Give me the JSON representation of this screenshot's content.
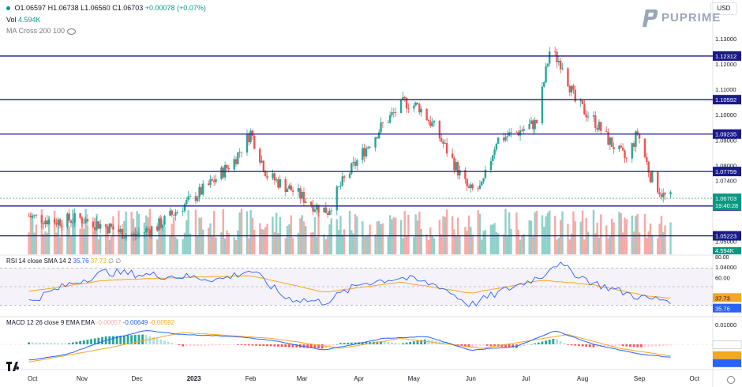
{
  "header": {
    "ohlc": {
      "open": "O1.06597",
      "high": "H1.06738",
      "low": "L1.06560",
      "close": "C1.06703",
      "change": "+0.00078 (+0.07%)"
    },
    "volume": {
      "label": "Vol",
      "value": "4.594K"
    },
    "ma_indicator": "MA Cross 200 100",
    "currency": "USD",
    "brand": "PUPRIME"
  },
  "rsi": {
    "label": "RSI 14 close SMA 14 2",
    "rsi_value": "35.76",
    "sma_value": "37.73",
    "extra": "∅ ∅"
  },
  "macd": {
    "label": "MACD 12 26 close 9 EMA EMA",
    "hist_value": "-0.00057",
    "macd_value": "-0.00649",
    "signal_value": "-0.00592"
  },
  "colors": {
    "up": "#26a69a",
    "down": "#ef5350",
    "level_line": "#1a1a8c",
    "rsi_line": "#2962ff",
    "rsi_sma": "#f5a623",
    "vol_up": "#8fd1c9",
    "vol_down": "#f7a9a7",
    "price_tag": "#089981"
  },
  "chart_data": [
    {
      "type": "candlestick",
      "title": "",
      "ylim": [
        1.044,
        1.134
      ],
      "y_ticks": [
        "1.13000",
        "1.12000",
        "1.11000",
        "1.10000",
        "1.09000",
        "1.08000",
        "1.07400",
        "1.05000",
        "1.04000"
      ],
      "x_labels": [
        "Oct",
        "Nov",
        "Dec",
        "2023",
        "Feb",
        "Mar",
        "Apr",
        "May",
        "Jun",
        "Jul",
        "Aug",
        "Sep",
        "Oct"
      ],
      "horizontal_levels": [
        "1.12312",
        "1.10592",
        "1.09235",
        "1.07759",
        "1.06399",
        "1.05223"
      ],
      "last_price": "1.06703",
      "countdown": "19:40:28",
      "volume_last": "4.594K",
      "volume_axis_label": "80.00",
      "close_path": [
        [
          "2022-10-03",
          1.06
        ],
        [
          "2022-10-17",
          1.058
        ],
        [
          "2022-10-31",
          1.059
        ],
        [
          "2022-11-14",
          1.056
        ],
        [
          "2022-11-28",
          1.052
        ],
        [
          "2022-12-12",
          1.056
        ],
        [
          "2022-12-26",
          1.064
        ],
        [
          "2023-01-09",
          1.072
        ],
        [
          "2023-01-23",
          1.082
        ],
        [
          "2023-02-01",
          1.093
        ],
        [
          "2023-02-10",
          1.076
        ],
        [
          "2023-02-24",
          1.07
        ],
        [
          "2023-03-08",
          1.064
        ],
        [
          "2023-03-15",
          1.062
        ],
        [
          "2023-03-22",
          1.072
        ],
        [
          "2023-04-03",
          1.085
        ],
        [
          "2023-04-14",
          1.096
        ],
        [
          "2023-04-26",
          1.105
        ],
        [
          "2023-05-04",
          1.103
        ],
        [
          "2023-05-12",
          1.095
        ],
        [
          "2023-05-22",
          1.082
        ],
        [
          "2023-05-31",
          1.07
        ],
        [
          "2023-06-07",
          1.071
        ],
        [
          "2023-06-15",
          1.09
        ],
        [
          "2023-06-26",
          1.093
        ],
        [
          "2023-07-07",
          1.097
        ],
        [
          "2023-07-14",
          1.125
        ],
        [
          "2023-07-21",
          1.12
        ],
        [
          "2023-07-28",
          1.105
        ],
        [
          "2023-08-07",
          1.098
        ],
        [
          "2023-08-15",
          1.09
        ],
        [
          "2023-08-25",
          1.082
        ],
        [
          "2023-08-31",
          1.093
        ],
        [
          "2023-09-07",
          1.076
        ],
        [
          "2023-09-14",
          1.068
        ],
        [
          "2023-09-18",
          1.067
        ]
      ]
    },
    {
      "type": "line",
      "title": "RSI 14 close SMA 14 2",
      "ylim": [
        20,
        80
      ],
      "y_ticks": [
        "60.00"
      ],
      "bands": [
        30,
        50,
        70
      ],
      "series": [
        {
          "name": "RSI",
          "x": [
            "2022-10-03",
            "2022-10-24",
            "2022-11-14",
            "2022-12-05",
            "2022-12-26",
            "2023-01-16",
            "2023-02-01",
            "2023-02-20",
            "2023-03-13",
            "2023-04-03",
            "2023-04-24",
            "2023-05-15",
            "2023-06-01",
            "2023-06-19",
            "2023-07-10",
            "2023-07-17",
            "2023-08-07",
            "2023-08-28",
            "2023-09-05",
            "2023-09-18"
          ],
          "values": [
            34,
            52,
            66,
            63,
            61,
            58,
            68,
            38,
            33,
            54,
            60,
            51,
            30,
            46,
            62,
            76,
            54,
            41,
            37,
            35.76
          ]
        },
        {
          "name": "SMA",
          "x": [
            "2022-10-03",
            "2022-11-14",
            "2022-12-26",
            "2023-02-01",
            "2023-03-13",
            "2023-04-24",
            "2023-06-01",
            "2023-07-10",
            "2023-08-07",
            "2023-09-05",
            "2023-09-18"
          ],
          "values": [
            45,
            57,
            60,
            62,
            44,
            55,
            43,
            57,
            52,
            40,
            37.73
          ]
        }
      ]
    },
    {
      "type": "bar+line",
      "title": "MACD 12 26 close 9 EMA EMA",
      "ylim": [
        -0.012,
        0.012
      ],
      "y_ticks": [
        "0.01000"
      ],
      "series": [
        {
          "name": "MACD",
          "x": [
            "2022-10-03",
            "2022-10-24",
            "2022-11-14",
            "2022-12-05",
            "2022-12-26",
            "2023-01-23",
            "2023-02-13",
            "2023-03-13",
            "2023-04-14",
            "2023-05-08",
            "2023-06-01",
            "2023-06-26",
            "2023-07-17",
            "2023-08-07",
            "2023-09-01",
            "2023-09-18"
          ],
          "values": [
            -0.008,
            -0.005,
            0.002,
            0.007,
            0.005,
            0.004,
            0.002,
            -0.003,
            0.003,
            0.004,
            -0.003,
            -0.001,
            0.007,
            0.0,
            -0.005,
            -0.00649
          ]
        },
        {
          "name": "Signal",
          "x": [
            "2022-10-03",
            "2022-11-14",
            "2022-12-26",
            "2023-02-13",
            "2023-03-22",
            "2023-04-24",
            "2023-06-07",
            "2023-07-24",
            "2023-08-21",
            "2023-09-18"
          ],
          "values": [
            -0.009,
            -0.002,
            0.006,
            0.003,
            -0.002,
            0.003,
            -0.002,
            0.005,
            -0.002,
            -0.00592
          ]
        }
      ]
    }
  ]
}
